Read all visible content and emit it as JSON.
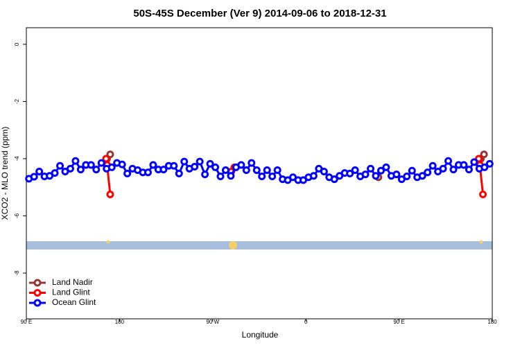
{
  "chart_data": {
    "type": "line",
    "title": "50S-45S December (Ver 9)   2014-09-06 to 2018-12-31",
    "x_label": "Longitude",
    "y_label": "XCO2 - MLO trend (ppm)",
    "xlim": [
      90,
      540
    ],
    "ylim": [
      -9.6,
      0.58
    ],
    "xticks": [
      {
        "value": 90,
        "label": "90 E"
      },
      {
        "value": 180,
        "label": "180"
      },
      {
        "value": 270,
        "label": "90 W"
      },
      {
        "value": 360,
        "label": "0"
      },
      {
        "value": 450,
        "label": "90 E"
      },
      {
        "value": 540,
        "label": "180"
      }
    ],
    "yticks": [
      0,
      -2,
      -4,
      -6,
      -8
    ],
    "legend": "bottom-left",
    "series": [
      {
        "name": "Land Nadir",
        "color": "#993333",
        "x": [
          168,
          171,
          null,
          430,
          null,
          529,
          532
        ],
        "values": [
          -4.0,
          -3.85,
          null,
          -4.65,
          null,
          -4.0,
          -3.85
        ]
      },
      {
        "name": "Land Glint",
        "color": "#ff0000",
        "x": [
          167,
          168,
          171,
          null,
          288,
          291,
          null,
          527,
          528,
          531
        ],
        "values": [
          -4.0,
          -4.22,
          -5.25,
          null,
          -4.45,
          -4.3,
          null,
          -4.0,
          -4.22,
          -5.25
        ]
      },
      {
        "name": "Ocean Glint",
        "color": "#0000ff",
        "x": [
          92.5,
          97.5,
          102.5,
          107.5,
          112.5,
          117.5,
          122.5,
          127.5,
          132.5,
          137.5,
          142.5,
          147.5,
          152.5,
          157.5,
          162.5,
          167.5,
          172.5,
          177.5,
          182.5,
          187.5,
          192.5,
          197.5,
          202.5,
          207.5,
          212.5,
          217.5,
          222.5,
          227.5,
          232.5,
          237.5,
          242.5,
          247.5,
          252.5,
          257.5,
          262.5,
          267.5,
          272.5,
          277.5,
          282.5,
          287.5,
          292.5,
          297.5,
          302.5,
          307.5,
          312.5,
          317.5,
          322.5,
          327.5,
          332.5,
          337.5,
          342.5,
          347.5,
          352.5,
          357.5,
          362.5,
          367.5,
          372.5,
          377.5,
          382.5,
          387.5,
          392.5,
          397.5,
          402.5,
          407.5,
          412.5,
          417.5,
          422.5,
          427.5,
          432.5,
          437.5,
          442.5,
          447.5,
          452.5,
          457.5,
          462.5,
          467.5,
          472.5,
          477.5,
          482.5,
          487.5,
          492.5,
          497.5,
          502.5,
          507.5,
          512.5,
          517.5,
          522.5,
          527.5,
          532.5,
          537.5
        ],
        "values": [
          -4.7,
          -4.63,
          -4.45,
          -4.62,
          -4.6,
          -4.5,
          -4.25,
          -4.45,
          -4.35,
          -4.08,
          -4.38,
          -4.22,
          -4.22,
          -4.38,
          -4.15,
          -4.35,
          -4.3,
          -4.15,
          -4.2,
          -4.52,
          -4.35,
          -4.4,
          -4.48,
          -4.48,
          -4.22,
          -4.38,
          -4.38,
          -4.25,
          -4.25,
          -4.52,
          -4.1,
          -4.35,
          -4.28,
          -4.1,
          -4.55,
          -4.18,
          -4.3,
          -4.62,
          -4.4,
          -4.6,
          -4.3,
          -4.22,
          -4.4,
          -4.15,
          -4.4,
          -4.62,
          -4.4,
          -4.62,
          -4.4,
          -4.72,
          -4.75,
          -4.65,
          -4.75,
          -4.75,
          -4.65,
          -4.6,
          -4.35,
          -4.45,
          -4.65,
          -4.72,
          -4.6,
          -4.5,
          -4.52,
          -4.4,
          -4.62,
          -4.55,
          -4.35,
          -4.6,
          -4.42,
          -4.3,
          -4.6,
          -4.55,
          -4.72,
          -4.62,
          -4.42,
          -4.65,
          -4.6,
          -4.48,
          -4.25,
          -4.45,
          -4.35,
          -4.08,
          -4.38,
          -4.22,
          -4.22,
          -4.38,
          -4.12,
          -4.35,
          -4.3,
          -4.18
        ]
      }
    ]
  }
}
